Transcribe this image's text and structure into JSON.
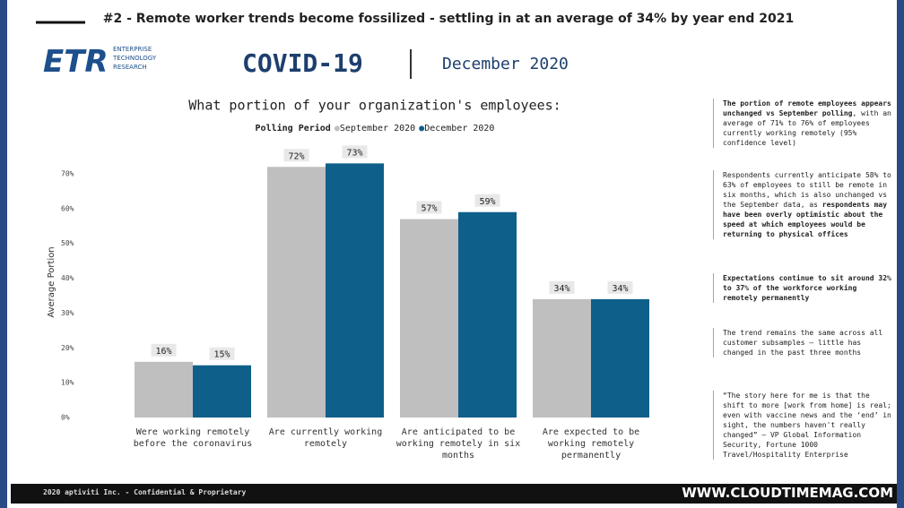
{
  "header": {
    "title": "#2 - Remote worker trends become fossilized - settling in at an average of 34% by year end 2021",
    "logo": "ETR",
    "logo_text": [
      "ENTERPRISE",
      "TECHNOLOGY",
      "RESEARCH"
    ],
    "topic": "COVID-19",
    "date": "December 2020"
  },
  "chart_data": {
    "type": "bar",
    "title": "What portion of your organization's employees:",
    "legend_title": "Polling Period",
    "categories": [
      "Were working remotely before the coronavirus",
      "Are currently working remotely",
      "Are anticipated to be working remotely in six months",
      "Are expected to be working remotely permanently"
    ],
    "series": [
      {
        "name": "September 2020",
        "color": "#bfbfbf",
        "values": [
          16,
          72,
          57,
          34
        ],
        "value_labels": [
          "16%",
          "72%",
          "57%",
          "34%"
        ]
      },
      {
        "name": "December 2020",
        "color": "#0e5f8a",
        "values": [
          15,
          73,
          59,
          34
        ],
        "value_labels": [
          "15%",
          "73%",
          "59%",
          "34%"
        ]
      }
    ],
    "ylabel": "Average Portion",
    "ylim": [
      0,
      75
    ],
    "yticks": [
      {
        "value": 0,
        "label": "0%"
      },
      {
        "value": 10,
        "label": "10%"
      },
      {
        "value": 20,
        "label": "20%"
      },
      {
        "value": 30,
        "label": "30%"
      },
      {
        "value": 40,
        "label": "40%"
      },
      {
        "value": 50,
        "label": "50%"
      },
      {
        "value": 60,
        "label": "60%"
      },
      {
        "value": 70,
        "label": "70%"
      }
    ],
    "grid": false
  },
  "notes": [
    [
      {
        "text": "The portion of remote employees appears unchanged vs September polling",
        "bold": true
      },
      {
        "text": ", with an average of 71% to 76% of employees currently working remotely (95% confidence level)",
        "bold": false
      }
    ],
    [
      {
        "text": "Respondents currently anticipate 58% to 63% of employees to still be remote in six months, which is also unchanged vs the September data, as ",
        "bold": false
      },
      {
        "text": "respondents may have been overly optimistic about the speed at which employees would be returning to physical offices",
        "bold": true
      }
    ],
    [
      {
        "text": "Expectations continue to sit around 32% to 37% of the workforce working remotely permanently",
        "bold": true
      }
    ],
    [
      {
        "text": "The trend remains the same across all customer subsamples – little has changed in the past three months",
        "bold": false
      }
    ],
    [
      {
        "text": "“The story here for me is that the shift to more [work from home] is real; even with vaccine news and the ‘end’ in sight, the numbers haven't really changed” – VP Global Information Security, Fortune 1000 Travel/Hospitality Enterprise",
        "bold": false
      }
    ]
  ],
  "footer": {
    "text": "2020 aptiviti Inc. - Confidential & Proprietary",
    "watermark": "WWW.CLOUDTIMEMAG.COM"
  }
}
